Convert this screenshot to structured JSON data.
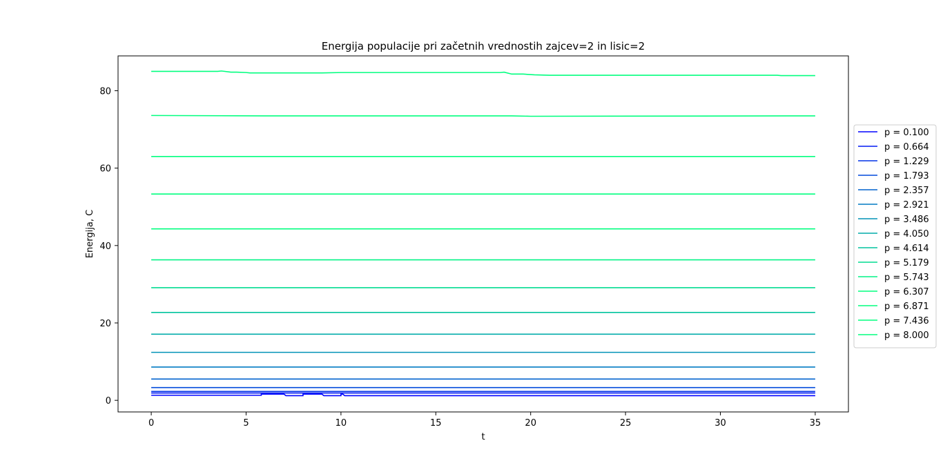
{
  "chart_data": {
    "type": "line",
    "title": "Energija populacije pri začetnih vrednostih zajcev=2 in lisic=2",
    "xlabel": "t",
    "ylabel": "Energija, C",
    "xlim": [
      -1.75,
      36.75
    ],
    "ylim": [
      -3,
      89
    ],
    "xticks": [
      0,
      5,
      10,
      15,
      20,
      25,
      30,
      35
    ],
    "yticks": [
      0,
      20,
      40,
      60,
      80
    ],
    "grid": false,
    "legend_position": "right",
    "series": [
      {
        "name": "p = 0.100",
        "color": "#0000ff",
        "points": [
          [
            0,
            1.3
          ],
          [
            5.8,
            1.3
          ],
          [
            5.8,
            1.6
          ],
          [
            7.0,
            1.6
          ],
          [
            7.1,
            1.2
          ],
          [
            8.0,
            1.2
          ],
          [
            8.0,
            1.6
          ],
          [
            9.0,
            1.6
          ],
          [
            9.1,
            1.2
          ],
          [
            10.0,
            1.2
          ],
          [
            10.0,
            1.6
          ],
          [
            10.1,
            1.6
          ],
          [
            10.2,
            1.2
          ],
          [
            35,
            1.2
          ]
        ]
      },
      {
        "name": "p = 0.664",
        "color": "#0018f3",
        "points": [
          [
            0,
            1.9
          ],
          [
            35,
            1.9
          ]
        ]
      },
      {
        "name": "p = 1.229",
        "color": "#0030e7",
        "points": [
          [
            0,
            2.3
          ],
          [
            35,
            2.3
          ]
        ]
      },
      {
        "name": "p = 1.793",
        "color": "#0049db",
        "points": [
          [
            0,
            3.3
          ],
          [
            35,
            3.3
          ]
        ]
      },
      {
        "name": "p = 2.357",
        "color": "#0062ce",
        "points": [
          [
            0,
            5.5
          ],
          [
            35,
            5.5
          ]
        ]
      },
      {
        "name": "p = 2.921",
        "color": "#007ac2",
        "points": [
          [
            0,
            8.6
          ],
          [
            35,
            8.6
          ]
        ]
      },
      {
        "name": "p = 3.486",
        "color": "#0092b6",
        "points": [
          [
            0,
            12.4
          ],
          [
            35,
            12.4
          ]
        ]
      },
      {
        "name": "p = 4.050",
        "color": "#00abaa",
        "points": [
          [
            0,
            17.1
          ],
          [
            35,
            17.1
          ]
        ]
      },
      {
        "name": "p = 4.614",
        "color": "#00c49d",
        "points": [
          [
            0,
            22.7
          ],
          [
            35,
            22.7
          ]
        ]
      },
      {
        "name": "p = 5.179",
        "color": "#00dc91",
        "points": [
          [
            0,
            29.1
          ],
          [
            35,
            29.1
          ]
        ]
      },
      {
        "name": "p = 5.743",
        "color": "#00f485",
        "points": [
          [
            0,
            36.3
          ],
          [
            35,
            36.3
          ]
        ]
      },
      {
        "name": "p = 6.307",
        "color": "#00ff7f",
        "points": [
          [
            0,
            44.3
          ],
          [
            35,
            44.3
          ]
        ]
      },
      {
        "name": "p = 6.871",
        "color": "#00ff7f",
        "points": [
          [
            0,
            53.3
          ],
          [
            35,
            53.3
          ]
        ]
      },
      {
        "name": "p = 7.436",
        "color": "#00ff7f",
        "points": [
          [
            0,
            63.0
          ],
          [
            35,
            63.0
          ]
        ]
      },
      {
        "name": "p = 8.000",
        "color": "#00ff7f",
        "points": [
          [
            0,
            73.6
          ],
          [
            6,
            73.5
          ],
          [
            10,
            73.5
          ],
          [
            19,
            73.5
          ],
          [
            20,
            73.4
          ],
          [
            35,
            73.5
          ]
        ]
      }
    ],
    "extra_unlabeled_series": [
      {
        "color": "#00ff7f",
        "points": [
          [
            0,
            85.0
          ],
          [
            3.5,
            85.0
          ],
          [
            3.7,
            85.1
          ],
          [
            4.2,
            84.8
          ],
          [
            4.5,
            84.8
          ],
          [
            5.0,
            84.7
          ],
          [
            5.2,
            84.6
          ],
          [
            9,
            84.6
          ],
          [
            10,
            84.7
          ],
          [
            18.4,
            84.7
          ],
          [
            18.6,
            84.8
          ],
          [
            19.0,
            84.3
          ],
          [
            19.6,
            84.3
          ],
          [
            20.2,
            84.1
          ],
          [
            21,
            84.0
          ],
          [
            23,
            84.0
          ],
          [
            33,
            84.0
          ],
          [
            33.2,
            83.9
          ],
          [
            35,
            83.9
          ]
        ]
      }
    ]
  }
}
